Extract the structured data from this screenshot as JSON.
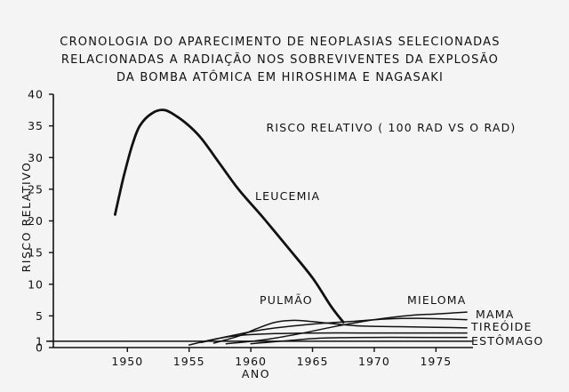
{
  "chart_data": {
    "type": "line",
    "title": [
      "CRONOLOGIA DO APARECIMENTO DE NEOPLASIAS SELECIONADAS",
      "RELACIONADAS A RADIAÇÃO NOS SOBREVIVENTES DA EXPLOSÃO",
      "DA BOMBA ATÔMICA EM HIROSHIMA E NAGASAKI"
    ],
    "annotation": "RISCO RELATIVO ( 100 RAD VS O RAD)",
    "xlabel": "ANO",
    "ylabel": "RISCO RELATIVO",
    "xlim": [
      1944,
      1978
    ],
    "ylim": [
      0,
      40
    ],
    "x_ticks": [
      1950,
      1955,
      1960,
      1965,
      1970,
      1975
    ],
    "y_ticks": [
      0,
      1,
      5,
      10,
      15,
      20,
      25,
      30,
      35,
      40
    ],
    "reference_line_y": 1,
    "series": [
      {
        "name": "LEUCEMIA",
        "stroke_width": 2.8,
        "points": [
          [
            1949,
            21
          ],
          [
            1949.7,
            27
          ],
          [
            1950.4,
            32
          ],
          [
            1951,
            35
          ],
          [
            1952,
            37
          ],
          [
            1953,
            37.5
          ],
          [
            1954,
            36.5
          ],
          [
            1955,
            35
          ],
          [
            1956,
            33
          ],
          [
            1957.5,
            29
          ],
          [
            1959,
            25
          ],
          [
            1961,
            20.5
          ],
          [
            1963,
            15.8
          ],
          [
            1965,
            11
          ],
          [
            1966.5,
            6.5
          ],
          [
            1967.5,
            4
          ]
        ]
      },
      {
        "name": "PULMÃO",
        "stroke_width": 1.5,
        "points": [
          [
            1957,
            0.7
          ],
          [
            1959,
            1.8
          ],
          [
            1960.5,
            3
          ],
          [
            1962,
            4
          ],
          [
            1963.5,
            4.3
          ],
          [
            1965,
            4.1
          ],
          [
            1967,
            3.7
          ],
          [
            1969,
            3.4
          ],
          [
            1972,
            3.3
          ],
          [
            1975,
            3.2
          ],
          [
            1977.5,
            3.1
          ]
        ]
      },
      {
        "name": "MIELOMA",
        "stroke_width": 1.5,
        "points": [
          [
            1958,
            0.6
          ],
          [
            1961,
            1.2
          ],
          [
            1964,
            2.2
          ],
          [
            1967,
            3.4
          ],
          [
            1970,
            4.4
          ],
          [
            1973,
            5.1
          ],
          [
            1975,
            5.3
          ],
          [
            1977.5,
            5.6
          ]
        ]
      },
      {
        "name": "MAMA",
        "stroke_width": 1.5,
        "points": [
          [
            1956,
            0.8
          ],
          [
            1958,
            1.7
          ],
          [
            1960,
            2.5
          ],
          [
            1962,
            3.1
          ],
          [
            1965,
            3.7
          ],
          [
            1968,
            4.1
          ],
          [
            1971,
            4.5
          ],
          [
            1974,
            4.6
          ],
          [
            1977.5,
            4.4
          ]
        ]
      },
      {
        "name": "TIREÓIDE",
        "stroke_width": 1.5,
        "points": [
          [
            1955,
            0.4
          ],
          [
            1957,
            1.3
          ],
          [
            1959,
            1.9
          ],
          [
            1962,
            2.2
          ],
          [
            1966,
            2.3
          ],
          [
            1970,
            2.3
          ],
          [
            1974,
            2.3
          ],
          [
            1977.5,
            2.3
          ]
        ]
      },
      {
        "name": "ESTÔMAGO",
        "stroke_width": 1.5,
        "points": [
          [
            1960,
            0.6
          ],
          [
            1963,
            1.1
          ],
          [
            1966,
            1.5
          ],
          [
            1970,
            1.6
          ],
          [
            1974,
            1.6
          ],
          [
            1977.5,
            1.6
          ]
        ]
      }
    ]
  }
}
